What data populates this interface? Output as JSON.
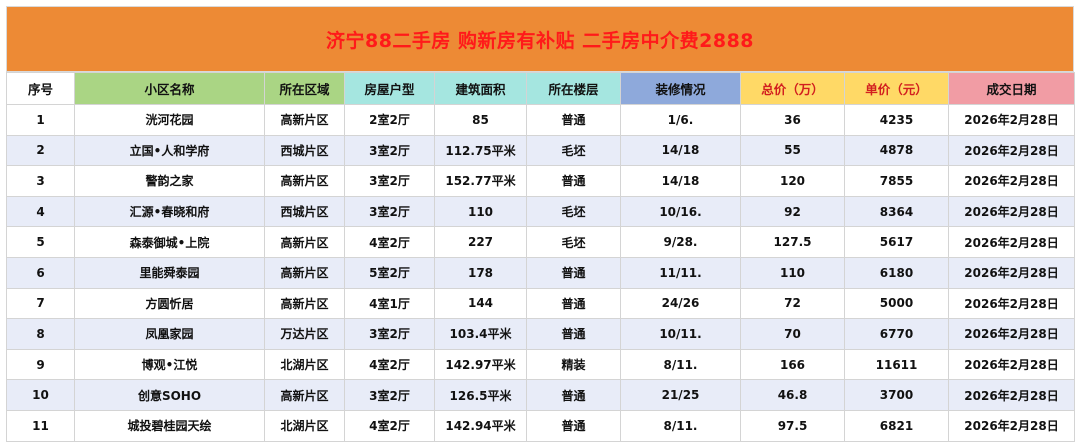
{
  "banner": {
    "title": "济宁88二手房 购新房有补贴 二手房中介费2888"
  },
  "table": {
    "headers": [
      "序号",
      "小区名称",
      "所在区域",
      "房屋户型",
      "建筑面积",
      "所在楼层",
      "装修情况",
      "总价（万）",
      "单价（元）",
      "成交日期"
    ],
    "header_colors": [
      "#ffffff",
      "#aad584",
      "#aad584",
      "#a5e6e0",
      "#a5e6e0",
      "#a5e6e0",
      "#8ea9db",
      "#ffd966",
      "#ffd966",
      "#f19ca4"
    ],
    "rows": [
      [
        "1",
        "洸河花园",
        "高新片区",
        "2室2厅",
        "85",
        "普通",
        "1/6.",
        "36",
        "4235",
        "2026年2月28日"
      ],
      [
        "2",
        "立国•人和学府",
        "西城片区",
        "3室2厅",
        "112.75平米",
        "毛坯",
        "14/18",
        "55",
        "4878",
        "2026年2月28日"
      ],
      [
        "3",
        "警韵之家",
        "高新片区",
        "3室2厅",
        "152.77平米",
        "普通",
        "14/18",
        "120",
        "7855",
        "2026年2月28日"
      ],
      [
        "4",
        "汇源•春晓和府",
        "西城片区",
        "3室2厅",
        "110",
        "毛坯",
        "10/16.",
        "92",
        "8364",
        "2026年2月28日"
      ],
      [
        "5",
        "森泰御城•上院",
        "高新片区",
        "4室2厅",
        "227",
        "毛坯",
        "9/28.",
        "127.5",
        "5617",
        "2026年2月28日"
      ],
      [
        "6",
        "里能舜泰园",
        "高新片区",
        "5室2厅",
        "178",
        "普通",
        "11/11.",
        "110",
        "6180",
        "2026年2月28日"
      ],
      [
        "7",
        "方圆忻居",
        "高新片区",
        "4室1厅",
        "144",
        "普通",
        "24/26",
        "72",
        "5000",
        "2026年2月28日"
      ],
      [
        "8",
        "凤凰家园",
        "万达片区",
        "3室2厅",
        "103.4平米",
        "普通",
        "10/11.",
        "70",
        "6770",
        "2026年2月28日"
      ],
      [
        "9",
        "博观•江悦",
        "北湖片区",
        "4室2厅",
        "142.97平米",
        "精装",
        "8/11.",
        "166",
        "11611",
        "2026年2月28日"
      ],
      [
        "10",
        "创意SOHO",
        "高新片区",
        "3室2厅",
        "126.5平米",
        "普通",
        "21/25",
        "46.8",
        "3700",
        "2026年2月28日"
      ],
      [
        "11",
        "城投碧桂园天绘",
        "北湖片区",
        "4室2厅",
        "142.94平米",
        "普通",
        "8/11.",
        "97.5",
        "6821",
        "2026年2月28日"
      ]
    ]
  }
}
